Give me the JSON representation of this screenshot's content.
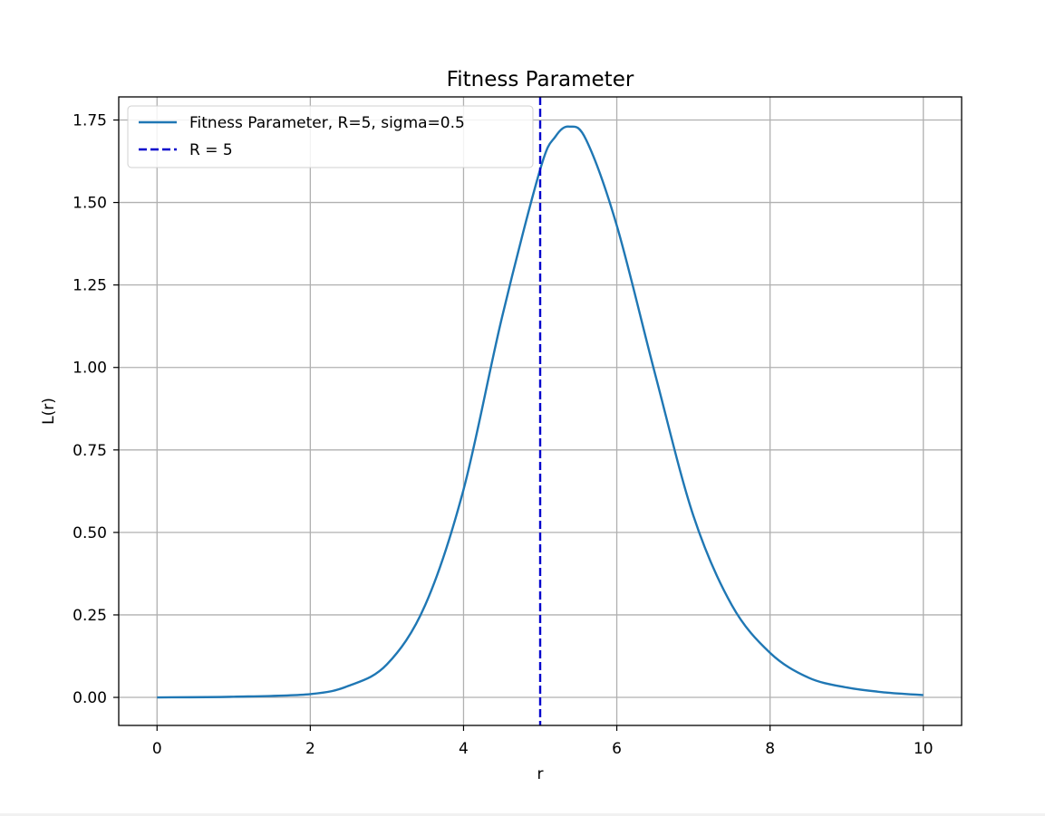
{
  "chart_data": {
    "type": "line",
    "title": "Fitness Parameter",
    "xlabel": "r",
    "ylabel": "L(r)",
    "xlim": [
      -0.5,
      10.5
    ],
    "ylim": [
      -0.085,
      1.82
    ],
    "xticks": [
      0,
      2,
      4,
      6,
      8,
      10
    ],
    "xtick_labels": [
      "0",
      "2",
      "4",
      "6",
      "8",
      "10"
    ],
    "yticks": [
      0.0,
      0.25,
      0.5,
      0.75,
      1.0,
      1.25,
      1.5,
      1.75
    ],
    "ytick_labels": [
      "0.00",
      "0.25",
      "0.50",
      "0.75",
      "1.00",
      "1.25",
      "1.50",
      "1.75"
    ],
    "grid": true,
    "legend_position": "top-left",
    "series": [
      {
        "name": "Fitness Parameter, R=5, sigma=0.5",
        "color": "#1f77b4",
        "style": "solid",
        "x": [
          0,
          1,
          2,
          2.5,
          3,
          3.5,
          4,
          4.5,
          5,
          5.2,
          5.38,
          5.6,
          6,
          6.5,
          7,
          7.5,
          8,
          8.5,
          9,
          9.5,
          10
        ],
        "y": [
          0.0,
          0.002,
          0.01,
          0.035,
          0.1,
          0.28,
          0.63,
          1.15,
          1.6,
          1.7,
          1.73,
          1.69,
          1.43,
          0.98,
          0.55,
          0.28,
          0.135,
          0.06,
          0.03,
          0.015,
          0.007
        ]
      },
      {
        "name": "R = 5",
        "color": "#0000cc",
        "style": "dashed",
        "vline_x": 5
      }
    ]
  }
}
